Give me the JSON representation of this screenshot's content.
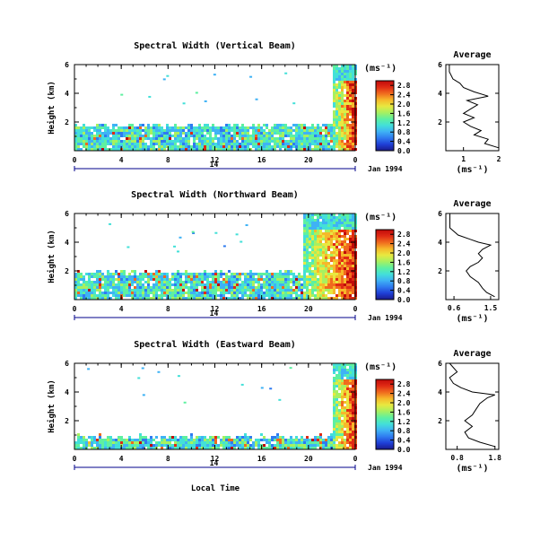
{
  "figure": {
    "xlabel": "Local Time",
    "date_label": "Jan 1994",
    "day_label": "14",
    "day_label_mid": "14",
    "unit": "(ms⁻¹)",
    "avg_title": "Average",
    "avg_xlabel": "(ms⁻¹)",
    "ylabel": "Height (km)",
    "colors": {
      "colormap": [
        "#1a1a8c",
        "#1f3fd6",
        "#2f7bf0",
        "#3fb2f5",
        "#43e0d8",
        "#5ef0a0",
        "#a8f060",
        "#e8e840",
        "#f6b82a",
        "#f06a1e",
        "#e02a14",
        "#c00a0a"
      ],
      "grid_line": "#000000",
      "day_bar": "#00008b"
    }
  },
  "chart_data": [
    {
      "type": "heatmap",
      "title": "Spectral Width (Vertical Beam)",
      "x_ticks": [
        "0",
        "4",
        "8",
        "12",
        "16",
        "20",
        "0"
      ],
      "xlim": [
        0,
        24
      ],
      "y_ticks": [
        "2",
        "4",
        "6"
      ],
      "ylim": [
        0,
        6
      ],
      "colorbar_ticks": [
        "0.0",
        "0.4",
        "0.8",
        "1.2",
        "1.6",
        "2.0",
        "2.4",
        "2.8"
      ],
      "colorbar_range": [
        0,
        3.0
      ],
      "low_echo_top_km": 1.9,
      "high_echo_start_hour": 22.0,
      "high_echo_top_km": 6.0,
      "average_profile": {
        "title": "Average",
        "x_ticks": [
          "1",
          "2"
        ],
        "xlim": [
          0.5,
          2.0
        ],
        "y_ticks": [
          "2",
          "4",
          "6"
        ],
        "ylim": [
          0,
          6
        ],
        "profile": [
          [
            2.0,
            0.2
          ],
          [
            1.6,
            0.5
          ],
          [
            1.7,
            0.8
          ],
          [
            1.3,
            1.1
          ],
          [
            1.5,
            1.4
          ],
          [
            1.2,
            1.7
          ],
          [
            1.0,
            2.0
          ],
          [
            1.3,
            2.3
          ],
          [
            1.0,
            2.6
          ],
          [
            1.2,
            2.9
          ],
          [
            1.4,
            3.2
          ],
          [
            1.1,
            3.5
          ],
          [
            1.7,
            3.8
          ],
          [
            1.3,
            4.1
          ],
          [
            1.0,
            4.4
          ],
          [
            0.9,
            4.7
          ],
          [
            0.7,
            5.0
          ],
          [
            0.6,
            5.5
          ],
          [
            0.6,
            6.0
          ]
        ]
      }
    },
    {
      "type": "heatmap",
      "title": "Spectral Width (Northward Beam)",
      "x_ticks": [
        "0",
        "4",
        "8",
        "12",
        "16",
        "20",
        "0"
      ],
      "xlim": [
        0,
        24
      ],
      "y_ticks": [
        "2",
        "4",
        "6"
      ],
      "ylim": [
        0,
        6
      ],
      "colorbar_ticks": [
        "0.0",
        "0.4",
        "0.8",
        "1.2",
        "1.6",
        "2.0",
        "2.4",
        "2.8"
      ],
      "colorbar_range": [
        0,
        3.0
      ],
      "low_echo_top_km": 2.0,
      "high_echo_start_hour": 19.5,
      "high_echo_top_km": 6.0,
      "average_profile": {
        "title": "Average",
        "x_ticks": [
          "0.6",
          "1.5"
        ],
        "xlim": [
          0.4,
          1.7
        ],
        "y_ticks": [
          "2",
          "4",
          "6"
        ],
        "ylim": [
          0,
          6
        ],
        "profile": [
          [
            1.6,
            0.2
          ],
          [
            1.4,
            0.5
          ],
          [
            1.3,
            0.8
          ],
          [
            1.2,
            1.2
          ],
          [
            1.0,
            1.6
          ],
          [
            0.9,
            2.0
          ],
          [
            1.0,
            2.3
          ],
          [
            1.2,
            2.6
          ],
          [
            1.3,
            2.9
          ],
          [
            1.2,
            3.2
          ],
          [
            1.3,
            3.5
          ],
          [
            1.5,
            3.8
          ],
          [
            1.2,
            4.0
          ],
          [
            1.0,
            4.2
          ],
          [
            0.7,
            4.5
          ],
          [
            0.5,
            5.0
          ],
          [
            0.5,
            5.5
          ],
          [
            0.5,
            6.0
          ]
        ]
      }
    },
    {
      "type": "heatmap",
      "title": "Spectral Width (Eastward Beam)",
      "x_ticks": [
        "0",
        "4",
        "8",
        "12",
        "16",
        "20",
        "0"
      ],
      "xlim": [
        0,
        24
      ],
      "y_ticks": [
        "2",
        "4",
        "6"
      ],
      "ylim": [
        0,
        6
      ],
      "colorbar_ticks": [
        "0.0",
        "0.4",
        "0.8",
        "1.2",
        "1.6",
        "2.0",
        "2.4",
        "2.8"
      ],
      "colorbar_range": [
        0,
        3.0
      ],
      "low_echo_top_km": 1.0,
      "high_echo_start_hour": 22.0,
      "high_echo_top_km": 6.0,
      "average_profile": {
        "title": "Average",
        "x_ticks": [
          "0.8",
          "1.8"
        ],
        "xlim": [
          0.5,
          1.9
        ],
        "y_ticks": [
          "2",
          "4",
          "6"
        ],
        "ylim": [
          0,
          6
        ],
        "profile": [
          [
            1.8,
            0.2
          ],
          [
            1.4,
            0.5
          ],
          [
            1.1,
            0.8
          ],
          [
            1.0,
            1.2
          ],
          [
            1.2,
            1.6
          ],
          [
            1.0,
            2.0
          ],
          [
            1.2,
            2.4
          ],
          [
            1.3,
            2.8
          ],
          [
            1.4,
            3.2
          ],
          [
            1.6,
            3.6
          ],
          [
            1.8,
            3.8
          ],
          [
            1.2,
            4.0
          ],
          [
            0.9,
            4.3
          ],
          [
            0.7,
            4.6
          ],
          [
            0.6,
            5.0
          ],
          [
            0.8,
            5.4
          ],
          [
            0.6,
            6.0
          ]
        ]
      }
    }
  ]
}
